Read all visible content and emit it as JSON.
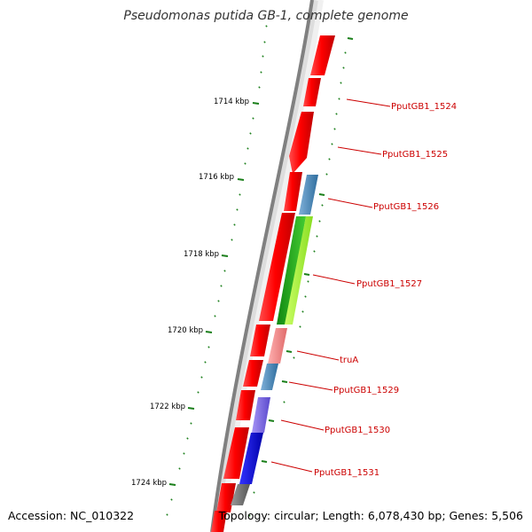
{
  "title": "Pseudomonas putida GB-1, complete genome",
  "footer": {
    "accession": "Accession: NC_010322",
    "summary": "Topology: circular; Length: 6,078,430 bp; Genes: 5,506"
  },
  "axis": {
    "tick_labels": [
      "1714 kbp",
      "1716 kbp",
      "1718 kbp",
      "1720 kbp",
      "1722 kbp",
      "1724 kbp"
    ]
  },
  "gene_labels": [
    "PputGB1_1524",
    "PputGB1_1525",
    "PputGB1_1526",
    "PputGB1_1527",
    "truA",
    "PputGB1_1529",
    "PputGB1_1530",
    "PputGB1_1531"
  ],
  "colors": {
    "forward_cds": "#ff0000",
    "backbone": "#888888",
    "ticks": "#1a7f1a",
    "label": "#cc0000",
    "blue": "#4682b4",
    "green": "#22aa22",
    "lime": "#aaff33",
    "pink": "#f08080",
    "purple": "#7b68ee",
    "deep_blue": "#0000ff",
    "gray": "#707070"
  }
}
